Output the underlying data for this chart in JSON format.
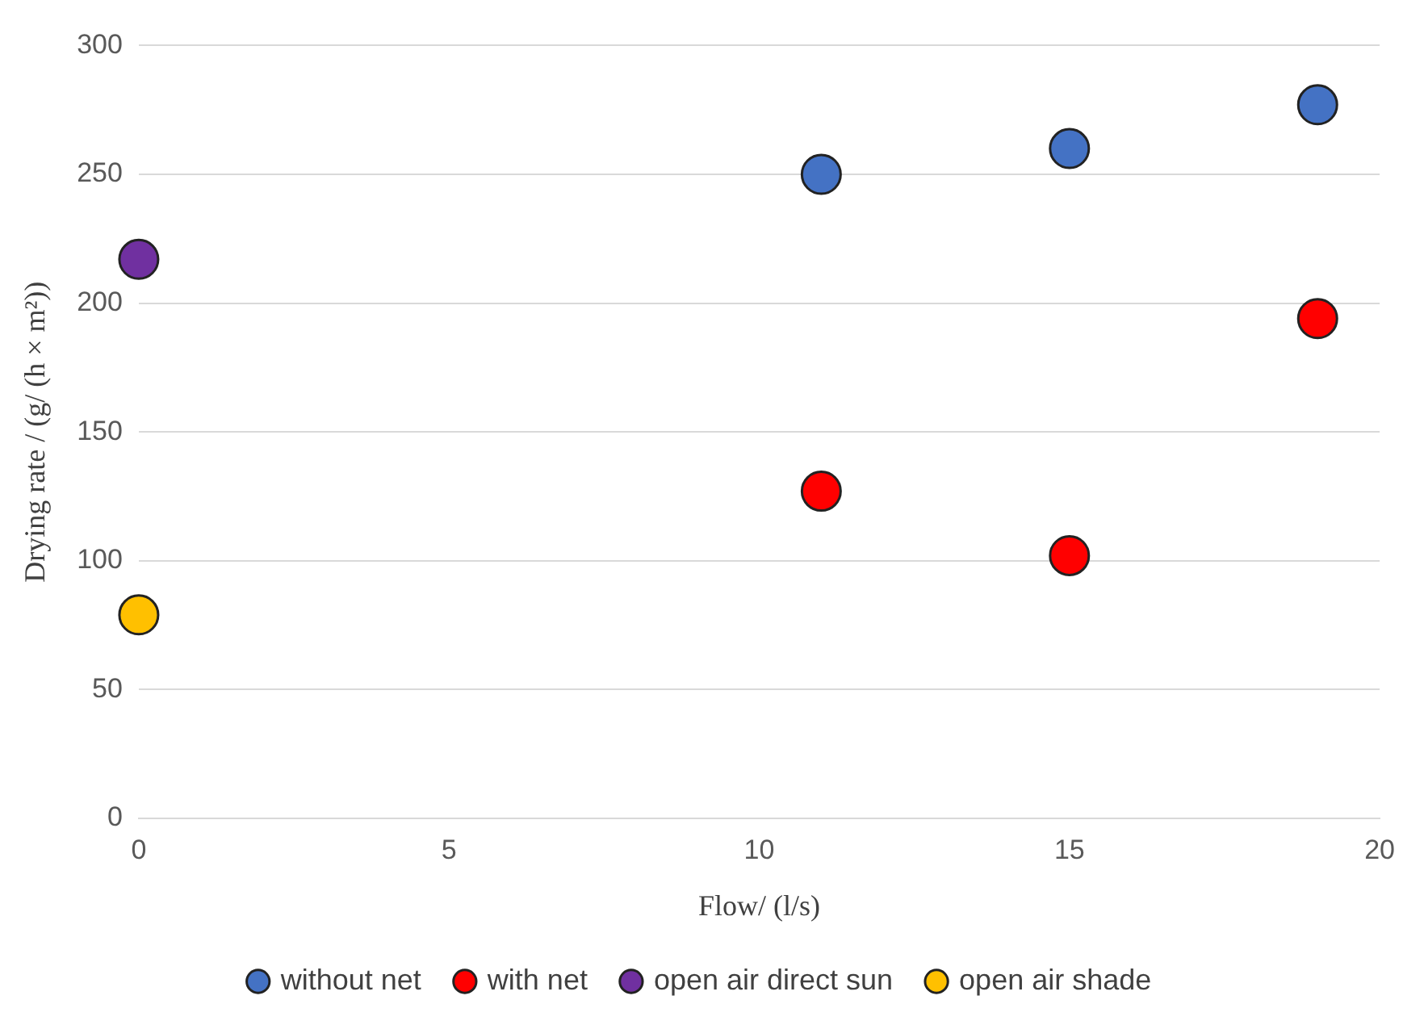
{
  "chart_data": {
    "type": "scatter",
    "xlabel": "Flow/ (l/s)",
    "ylabel": "Drying rate / (g/ (h × m²))",
    "xlim": [
      0,
      20
    ],
    "xticks": [
      0,
      5,
      10,
      15,
      20
    ],
    "ylim": [
      0,
      300
    ],
    "yticks": [
      0,
      50,
      100,
      150,
      200,
      250,
      300
    ],
    "grid": "y",
    "legend": "bottom",
    "marker": "circle",
    "series": [
      {
        "name": "without net",
        "color": "#4472c4",
        "x": [
          11,
          15,
          19
        ],
        "values": [
          250,
          260,
          277
        ]
      },
      {
        "name": "with net",
        "color": "#ff0000",
        "x": [
          11,
          15,
          19
        ],
        "values": [
          127,
          102,
          194
        ]
      },
      {
        "name": "open air direct sun",
        "color": "#7030a0",
        "x": [
          0
        ],
        "values": [
          217
        ]
      },
      {
        "name": "open air shade",
        "color": "#ffc000",
        "x": [
          0
        ],
        "values": [
          79
        ]
      }
    ]
  }
}
